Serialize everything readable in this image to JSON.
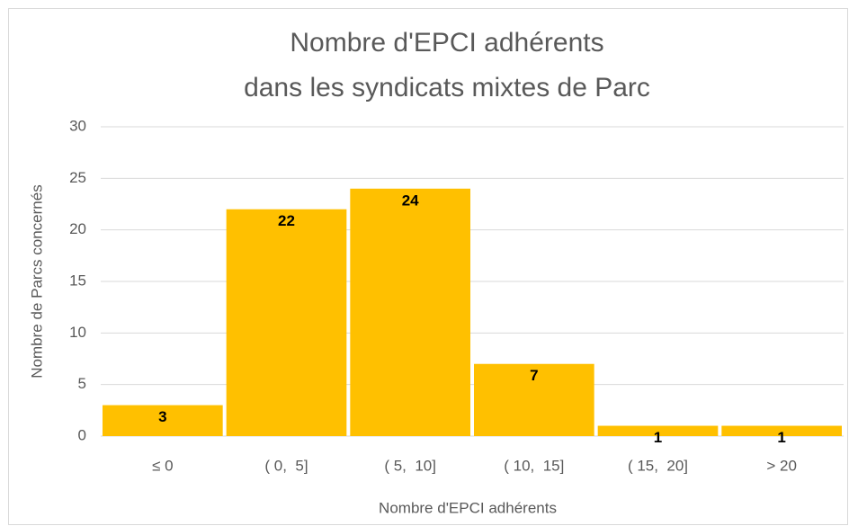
{
  "chart_data": {
    "type": "bar",
    "title": [
      "Nombre d'EPCI adhérents",
      "dans les syndicats mixtes de Parc"
    ],
    "x_label": "Nombre d'EPCI adhérents",
    "y_label": "Nombre de Parcs concernés",
    "categories": [
      "≤ 0",
      "( 0,  5]",
      "( 5,  10]",
      "( 10,  15]",
      "( 15,  20]",
      "> 20"
    ],
    "values": [
      3,
      22,
      24,
      7,
      1,
      1
    ],
    "color": "#ffc000",
    "ylim": [
      0,
      30
    ],
    "yticks": [
      0,
      5,
      10,
      15,
      20,
      25,
      30
    ],
    "grid": true
  }
}
